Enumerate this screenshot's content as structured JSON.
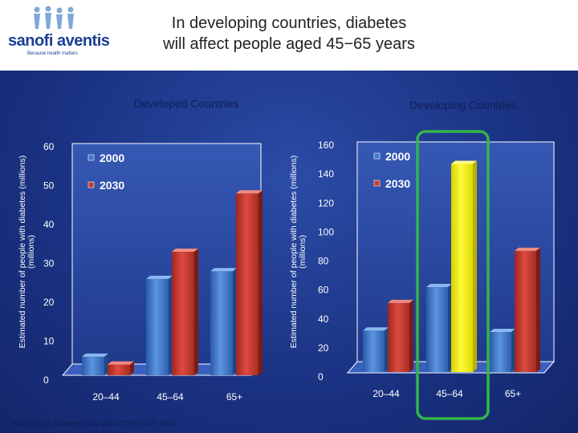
{
  "header": {
    "title_line1": "In developing countries, diabetes",
    "title_line2": "will affect people aged 45−65 years",
    "logo_name": "sanofi aventis",
    "logo_tagline": "Because health matters"
  },
  "footnote": {
    "prefix": "1. Wild S ",
    "italic_etal": "et al.",
    "journal": "Diabetes Care",
    "citation": "2004;27(5):1047–1053"
  },
  "colors": {
    "bar_2000": "#3d79c9",
    "bar_2030": "#c7392f",
    "highlight": "#f6ef0a",
    "highlight_box": "#33b64a"
  },
  "chart_data": [
    {
      "type": "bar",
      "title": "Developed Countries",
      "ylabel": "Estimated number of people with diabetes (millions)",
      "categories": [
        "20–44",
        "45–64",
        "65+"
      ],
      "series": [
        {
          "name": "2000",
          "values": [
            6,
            26,
            28
          ]
        },
        {
          "name": "2030",
          "values": [
            4,
            33,
            48
          ]
        }
      ],
      "ylim": [
        0,
        60
      ],
      "yticks": [
        0,
        10,
        20,
        30,
        40,
        50,
        60
      ],
      "legend": "top-left"
    },
    {
      "type": "bar",
      "title": "Developing Countries",
      "ylabel": "Estimated number of people with diabetes (millions)",
      "categories": [
        "20–44",
        "45–64",
        "65+"
      ],
      "series": [
        {
          "name": "2000",
          "values": [
            32,
            62,
            31
          ]
        },
        {
          "name": "2030",
          "values": [
            51,
            147,
            87
          ]
        }
      ],
      "ylim": [
        0,
        160
      ],
      "yticks": [
        0,
        20,
        40,
        60,
        80,
        100,
        120,
        140,
        160
      ],
      "legend": "top-left",
      "highlight_category": "45–64"
    }
  ]
}
